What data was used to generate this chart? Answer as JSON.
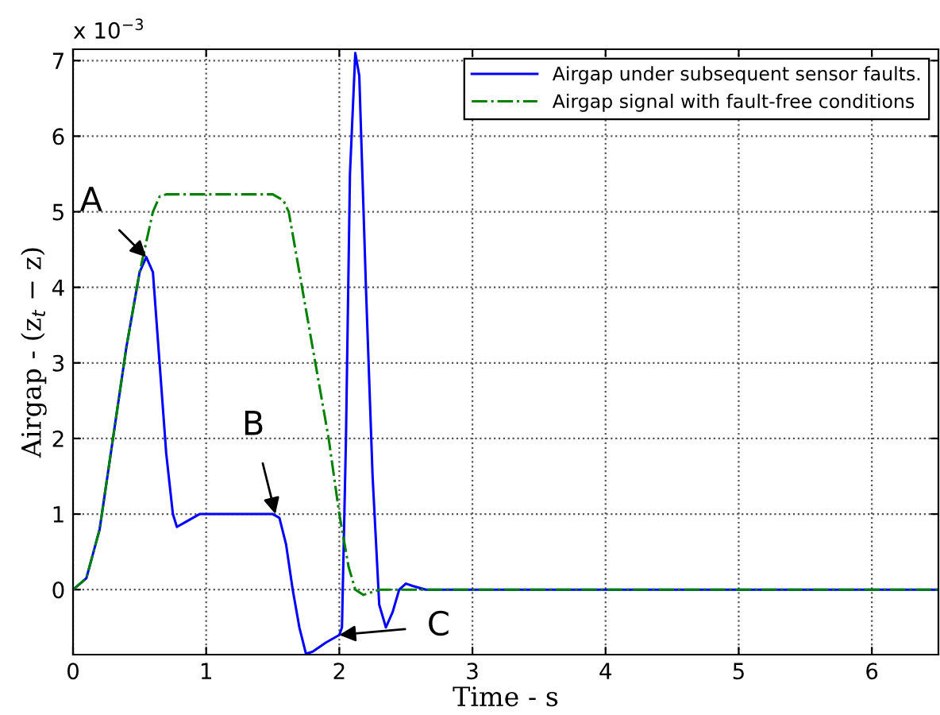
{
  "chart_data": {
    "type": "line",
    "xlabel": "Time - s",
    "ylabel": "Airgap - (z$_{t}$ − z)",
    "xlim": [
      0,
      6.5
    ],
    "xticks": [
      0,
      1,
      2,
      3,
      4,
      5,
      6
    ],
    "ylim": [
      -0.86,
      7.15
    ],
    "yticks": [
      0,
      1,
      2,
      3,
      4,
      5,
      6,
      7
    ],
    "grid": true,
    "legend": "top right",
    "series": [
      {
        "name": "Airgap under subsequent sensor faults.",
        "color": "#0000ff",
        "line_style": "solid",
        "x": [
          0,
          0.1,
          0.2,
          0.3,
          0.4,
          0.5,
          0.55,
          0.6,
          0.65,
          0.7,
          0.75,
          0.78,
          0.85,
          0.95,
          1.5,
          1.55,
          1.6,
          1.65,
          1.7,
          1.75,
          1.8,
          1.9,
          2.0,
          2.02,
          2.05,
          2.08,
          2.12,
          2.15,
          2.2,
          2.25,
          2.3,
          2.35,
          2.4,
          2.45,
          2.5,
          2.55,
          2.65,
          6.5
        ],
        "values": [
          0,
          0.15,
          0.8,
          2.0,
          3.2,
          4.2,
          4.4,
          4.2,
          3.0,
          1.8,
          1.0,
          0.83,
          0.9,
          1.0,
          1.0,
          0.95,
          0.6,
          0.0,
          -0.5,
          -0.85,
          -0.82,
          -0.7,
          -0.6,
          -0.5,
          2.0,
          5.5,
          7.1,
          6.8,
          4.0,
          1.5,
          -0.2,
          -0.5,
          -0.3,
          0.0,
          0.08,
          0.05,
          0.0,
          0.0
        ]
      },
      {
        "name": "Airgap signal with fault-free conditions",
        "color": "#008000",
        "line_style": "dashdot",
        "x": [
          0,
          0.1,
          0.2,
          0.3,
          0.4,
          0.5,
          0.55,
          0.6,
          0.65,
          0.7,
          1.5,
          1.58,
          1.62,
          1.7,
          1.82,
          1.92,
          2.0,
          2.07,
          2.12,
          2.18,
          2.25,
          2.3,
          6.5
        ],
        "values": [
          0,
          0.15,
          0.8,
          2.0,
          3.2,
          4.2,
          4.6,
          5.0,
          5.2,
          5.23,
          5.23,
          5.15,
          5.0,
          4.2,
          3.0,
          2.0,
          1.0,
          0.3,
          0.0,
          -0.07,
          -0.03,
          0,
          0
        ]
      }
    ],
    "annotations": [
      "x 10$^{−3}$",
      {
        "text": "A",
        "x": 0.55,
        "y": 4.4
      },
      {
        "text": "B",
        "x": 1.52,
        "y": 1.0
      },
      {
        "text": "C",
        "x": 2.0,
        "y": -0.6
      }
    ]
  }
}
